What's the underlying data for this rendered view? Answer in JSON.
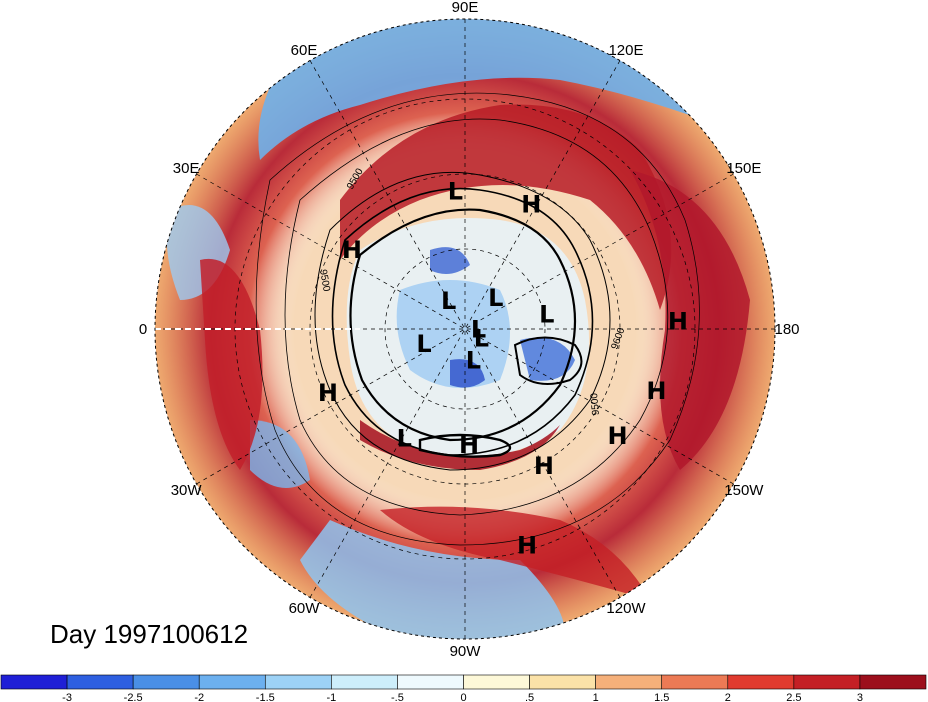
{
  "title": "Day 1997100612",
  "map": {
    "projection": "north-polar-stereographic",
    "longitude_labels": [
      {
        "text": "90E",
        "lon": 90
      },
      {
        "text": "60E",
        "lon": 60
      },
      {
        "text": "30E",
        "lon": 30
      },
      {
        "text": "0",
        "lon": 0
      },
      {
        "text": "30W",
        "lon": -30
      },
      {
        "text": "60W",
        "lon": -60
      },
      {
        "text": "90W",
        "lon": -90
      },
      {
        "text": "120W",
        "lon": -120
      },
      {
        "text": "150W",
        "lon": -150
      },
      {
        "text": "180",
        "lon": 180
      },
      {
        "text": "150E",
        "lon": 150
      },
      {
        "text": "120E",
        "lon": 120
      }
    ],
    "pressure_systems": [
      {
        "type": "L",
        "lon": 86,
        "lat": 42
      },
      {
        "type": "H",
        "lon": 118,
        "lat": 41
      },
      {
        "type": "H",
        "lon": 35,
        "lat": 42
      },
      {
        "type": "H",
        "lon": 178,
        "lat": 21
      },
      {
        "type": "H",
        "lon": -162,
        "lat": 24
      },
      {
        "type": "H",
        "lon": -145,
        "lat": 28
      },
      {
        "type": "H",
        "lon": -120,
        "lat": 36
      },
      {
        "type": "H",
        "lon": -92,
        "lat": 49
      },
      {
        "type": "H",
        "lon": -106,
        "lat": 18
      },
      {
        "type": "H",
        "lon": -25,
        "lat": 38
      },
      {
        "type": "L",
        "lon": -61,
        "lat": 46
      },
      {
        "type": "L",
        "lon": 135,
        "lat": 74
      },
      {
        "type": "L",
        "lon": 60,
        "lat": 78
      },
      {
        "type": "L",
        "lon": 170,
        "lat": 60
      },
      {
        "type": "L",
        "lon": -178,
        "lat": 85
      },
      {
        "type": "L",
        "lon": -150,
        "lat": 83
      },
      {
        "type": "L",
        "lon": -105,
        "lat": 78
      },
      {
        "type": "L",
        "lon": -20,
        "lat": 74
      }
    ],
    "contour_labels": [
      "9500",
      "9500",
      "9500",
      "9600",
      "9600"
    ]
  },
  "colorbar": {
    "colors": [
      "#1f1fd6",
      "#2e5fe0",
      "#4a8fe6",
      "#6cb0ef",
      "#9dd2f6",
      "#cdeefb",
      "#eef9fd",
      "#fdf8d8",
      "#fbe2a8",
      "#f5b07a",
      "#ec7a55",
      "#e03b2f",
      "#c41f25",
      "#9c0f1c"
    ],
    "ticks": [
      "-3",
      "-2.5",
      "-2",
      "-1.5",
      "-1",
      "-.5",
      "0",
      ".5",
      "1",
      "1.5",
      "2",
      "2.5",
      "3"
    ]
  }
}
